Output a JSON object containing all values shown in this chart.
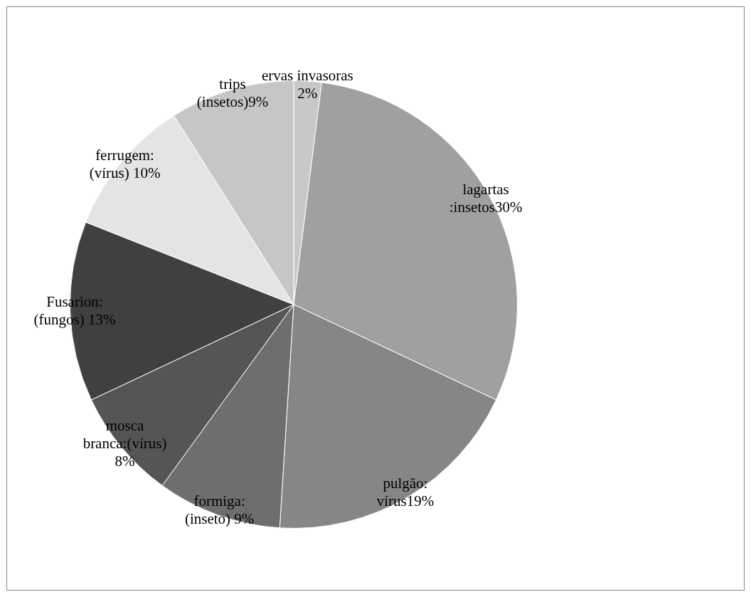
{
  "chart_data": {
    "type": "pie",
    "categories": [
      "ervas invasoras",
      "lagartas :insetos",
      "pulgão: vírus",
      "formiga: (inseto)",
      "mosca branca:(vírus)",
      "Fusarion: (fungos)",
      "ferrugem: (vírus)",
      "trips (insetos)"
    ],
    "values": [
      2,
      30,
      19,
      9,
      8,
      13,
      10,
      9
    ],
    "value_labels": [
      " 2%",
      "30%",
      "19%",
      " 9%",
      " 8%",
      " 13%",
      " 10%",
      "9%"
    ],
    "colors": [
      "#c8c8c8",
      "#a0a0a0",
      "#868686",
      "#6e6e6e",
      "#555555",
      "#404040",
      "#e4e4e4",
      "#c6c6c6"
    ],
    "legend": false
  }
}
